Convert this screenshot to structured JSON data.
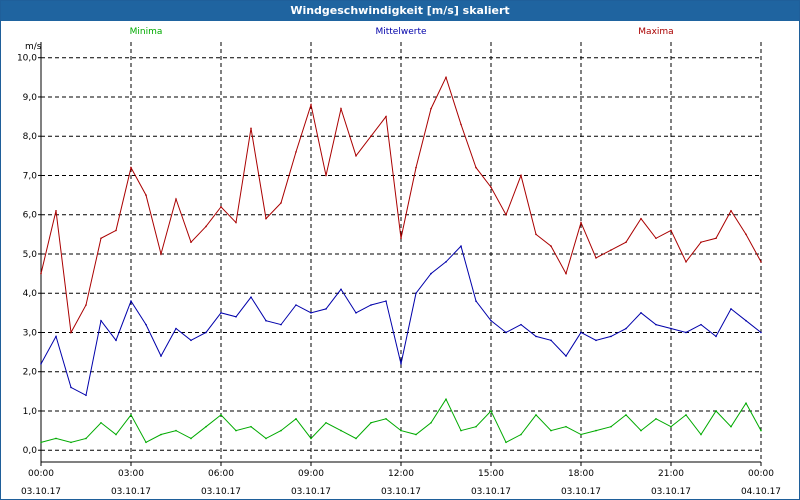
{
  "window": {
    "title": "Windgeschwindigkeit [m/s] skaliert"
  },
  "chart_data": {
    "type": "line",
    "title": "Windgeschwindigkeit [m/s] skaliert",
    "ylabel": "m/s",
    "ylim": [
      -0.3,
      10.4
    ],
    "xlim": [
      0,
      24
    ],
    "grid": true,
    "legend_placement": "top",
    "yticks": [
      "0,0",
      "1,0",
      "2,0",
      "3,0",
      "4,0",
      "5,0",
      "6,0",
      "7,0",
      "8,0",
      "9,0",
      "10,0"
    ],
    "ytick_values": [
      0,
      1,
      2,
      3,
      4,
      5,
      6,
      7,
      8,
      9,
      10
    ],
    "xticks": [
      {
        "time": "00:00",
        "date": "03.10.17"
      },
      {
        "time": "03:00",
        "date": "03.10.17"
      },
      {
        "time": "06:00",
        "date": "03.10.17"
      },
      {
        "time": "09:00",
        "date": "03.10.17"
      },
      {
        "time": "12:00",
        "date": "03.10.17"
      },
      {
        "time": "15:00",
        "date": "03.10.17"
      },
      {
        "time": "18:00",
        "date": "03.10.17"
      },
      {
        "time": "21:00",
        "date": "03.10.17"
      },
      {
        "time": "00:00",
        "date": "04.10.17"
      }
    ],
    "xtick_hours": [
      0,
      3,
      6,
      9,
      12,
      15,
      18,
      21,
      24
    ],
    "series": [
      {
        "name": "Minima",
        "color": "#00aa00",
        "x": [
          0,
          0.5,
          1,
          1.5,
          2,
          2.5,
          3,
          3.5,
          4,
          4.5,
          5,
          5.5,
          6,
          6.5,
          7,
          7.5,
          8,
          8.5,
          9,
          9.5,
          10,
          10.5,
          11,
          11.5,
          12,
          12.5,
          13,
          13.5,
          14,
          14.5,
          15,
          15.5,
          16,
          16.5,
          17,
          17.5,
          18,
          18.5,
          19,
          19.5,
          20,
          20.5,
          21,
          21.5,
          22,
          22.5,
          23,
          23.5,
          24
        ],
        "values": [
          0.2,
          0.3,
          0.2,
          0.3,
          0.7,
          0.4,
          0.9,
          0.2,
          0.4,
          0.5,
          0.3,
          0.6,
          0.9,
          0.5,
          0.6,
          0.3,
          0.5,
          0.8,
          0.3,
          0.7,
          0.5,
          0.3,
          0.7,
          0.8,
          0.5,
          0.4,
          0.7,
          1.3,
          0.5,
          0.6,
          1.0,
          0.2,
          0.4,
          0.9,
          0.5,
          0.6,
          0.4,
          0.5,
          0.6,
          0.9,
          0.5,
          0.8,
          0.6,
          0.9,
          0.4,
          1.0,
          0.6,
          1.2,
          0.5
        ]
      },
      {
        "name": "Mittelwerte",
        "color": "#0000aa",
        "x": [
          0,
          0.5,
          1,
          1.5,
          2,
          2.5,
          3,
          3.5,
          4,
          4.5,
          5,
          5.5,
          6,
          6.5,
          7,
          7.5,
          8,
          8.5,
          9,
          9.5,
          10,
          10.5,
          11,
          11.5,
          12,
          12.5,
          13,
          13.5,
          14,
          14.5,
          15,
          15.5,
          16,
          16.5,
          17,
          17.5,
          18,
          18.5,
          19,
          19.5,
          20,
          20.5,
          21,
          21.5,
          22,
          22.5,
          23,
          23.5,
          24
        ],
        "values": [
          2.2,
          2.9,
          1.6,
          1.4,
          3.3,
          2.8,
          3.8,
          3.2,
          2.4,
          3.1,
          2.8,
          3.0,
          3.5,
          3.4,
          3.9,
          3.3,
          3.2,
          3.7,
          3.5,
          3.6,
          4.1,
          3.5,
          3.7,
          3.8,
          2.2,
          4.0,
          4.5,
          4.8,
          5.2,
          3.8,
          3.3,
          3.0,
          3.2,
          2.9,
          2.8,
          2.4,
          3.0,
          2.8,
          2.9,
          3.1,
          3.5,
          3.2,
          3.1,
          3.0,
          3.2,
          2.9,
          3.6,
          3.3,
          3.0
        ]
      },
      {
        "name": "Maxima",
        "color": "#aa0000",
        "x": [
          0,
          0.5,
          1,
          1.5,
          2,
          2.5,
          3,
          3.5,
          4,
          4.5,
          5,
          5.5,
          6,
          6.5,
          7,
          7.5,
          8,
          8.5,
          9,
          9.5,
          10,
          10.5,
          11,
          11.5,
          12,
          12.5,
          13,
          13.5,
          14,
          14.5,
          15,
          15.5,
          16,
          16.5,
          17,
          17.5,
          18,
          18.5,
          19,
          19.5,
          20,
          20.5,
          21,
          21.5,
          22,
          22.5,
          23,
          23.5,
          24
        ],
        "values": [
          4.5,
          6.1,
          3.0,
          3.7,
          5.4,
          5.6,
          7.2,
          6.5,
          5.0,
          6.4,
          5.3,
          5.7,
          6.2,
          5.8,
          8.2,
          5.9,
          6.3,
          7.6,
          8.8,
          7.0,
          8.7,
          7.5,
          8.0,
          8.5,
          5.4,
          7.2,
          8.7,
          9.5,
          8.3,
          7.2,
          6.7,
          6.0,
          7.0,
          5.5,
          5.2,
          4.5,
          5.8,
          4.9,
          5.1,
          5.3,
          5.9,
          5.4,
          5.6,
          4.8,
          5.3,
          5.4,
          6.1,
          5.5,
          4.8
        ]
      }
    ]
  }
}
